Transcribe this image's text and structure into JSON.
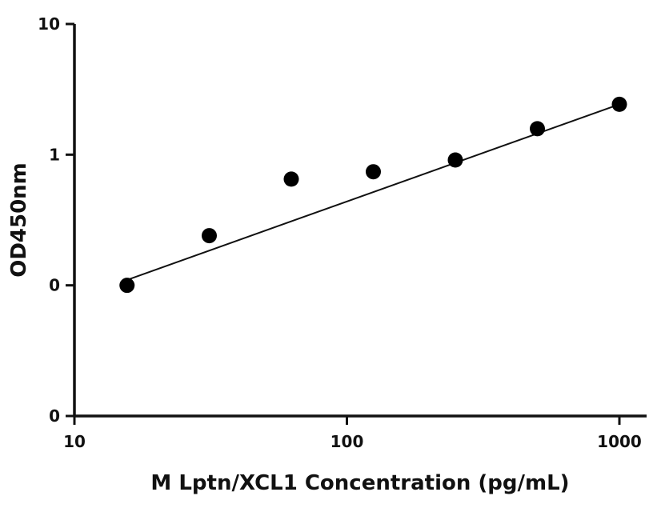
{
  "chart_data": {
    "type": "scatter",
    "title": "",
    "xlabel": "M Lptn/XCL1 Concentration (pg/mL)",
    "ylabel": "OD450nm",
    "xscale": "log",
    "yscale": "log",
    "xlim": [
      10,
      1150
    ],
    "ylim": [
      0.01,
      10
    ],
    "xticks": [
      10,
      100,
      1000
    ],
    "xtick_labels": [
      "10",
      "100",
      "1000"
    ],
    "yticks": [
      0.01,
      0.1,
      1,
      10
    ],
    "ytick_labels": [
      "0",
      "0",
      "1",
      "10"
    ],
    "grid": false,
    "legend": "none",
    "series": [
      {
        "x": [
          15.6,
          31.25,
          62.5,
          125,
          250,
          500,
          1000
        ],
        "y": [
          0.1,
          0.24,
          0.65,
          0.74,
          0.91,
          1.58,
          2.43
        ]
      }
    ],
    "fit_line": {
      "x": [
        15.6,
        1000
      ],
      "y": [
        0.11,
        2.43
      ]
    }
  }
}
